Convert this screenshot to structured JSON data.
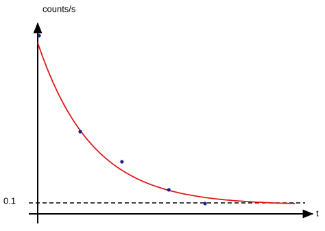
{
  "chart_data": {
    "type": "scatter",
    "ylabel": "counts/s",
    "xlabel": "t",
    "x": [
      0.05,
      1.57,
      3.11,
      4.84,
      6.18
    ],
    "values": [
      1.625,
      0.75,
      0.475,
      0.219,
      0.094
    ],
    "color": "#1c1c8f",
    "fit": {
      "amplitude": 1.48,
      "tau": 2.02,
      "offset": 0.08,
      "x_range": [
        0,
        9.5
      ],
      "color": "#e0191b"
    },
    "xlim": [
      0,
      10
    ],
    "ylim": [
      0,
      1.7
    ],
    "yticks": [
      0.1
    ],
    "tick_line_style": "dashed"
  }
}
